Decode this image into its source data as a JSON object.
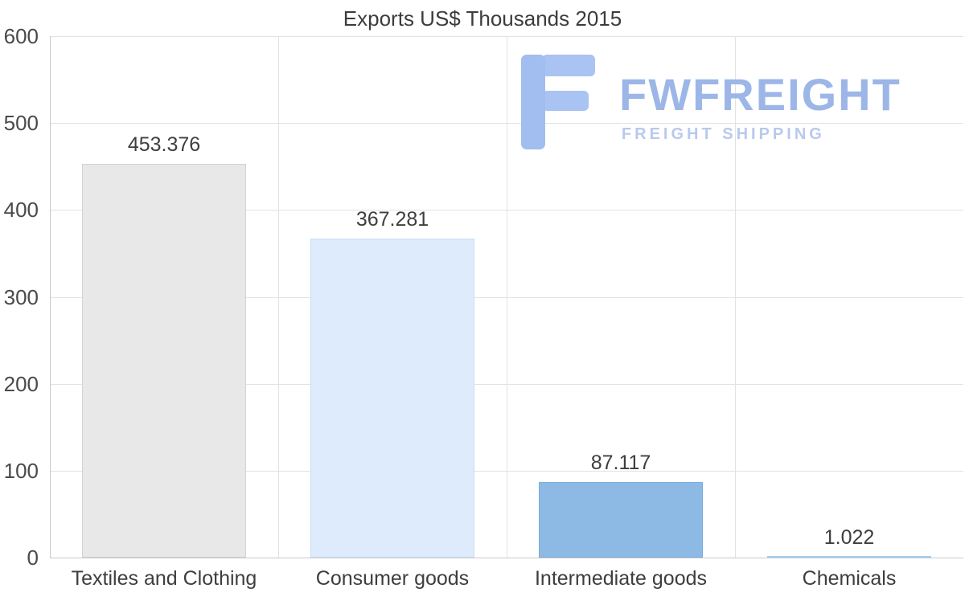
{
  "chart_data": {
    "type": "bar",
    "title": "Exports US$ Thousands 2015",
    "categories": [
      "Textiles and Clothing",
      "Consumer goods",
      "Intermediate goods",
      "Chemicals"
    ],
    "values": [
      453.376,
      367.281,
      87.117,
      1.022
    ],
    "value_labels": [
      "453.376",
      "367.281",
      "87.117",
      "1.022"
    ],
    "ylim": [
      0,
      600
    ],
    "yticks": [
      0,
      100,
      200,
      300,
      400,
      500,
      600
    ],
    "grid": "horizontal gridlines at each 100; vertical separators between categories",
    "legend_position": "none",
    "bar_colors": [
      "#e8e8e8",
      "#ddebfc",
      "#8cbae4",
      "#bcdcf5"
    ],
    "bar_border_colors": [
      "#d2d2d2",
      "#c8dcf4",
      "#7aace0",
      "#a6cdee"
    ]
  },
  "watermark": {
    "brand": "FWFREIGHT",
    "tagline": "FREIGHT SHIPPING",
    "brand_color": "#9db6e8"
  }
}
